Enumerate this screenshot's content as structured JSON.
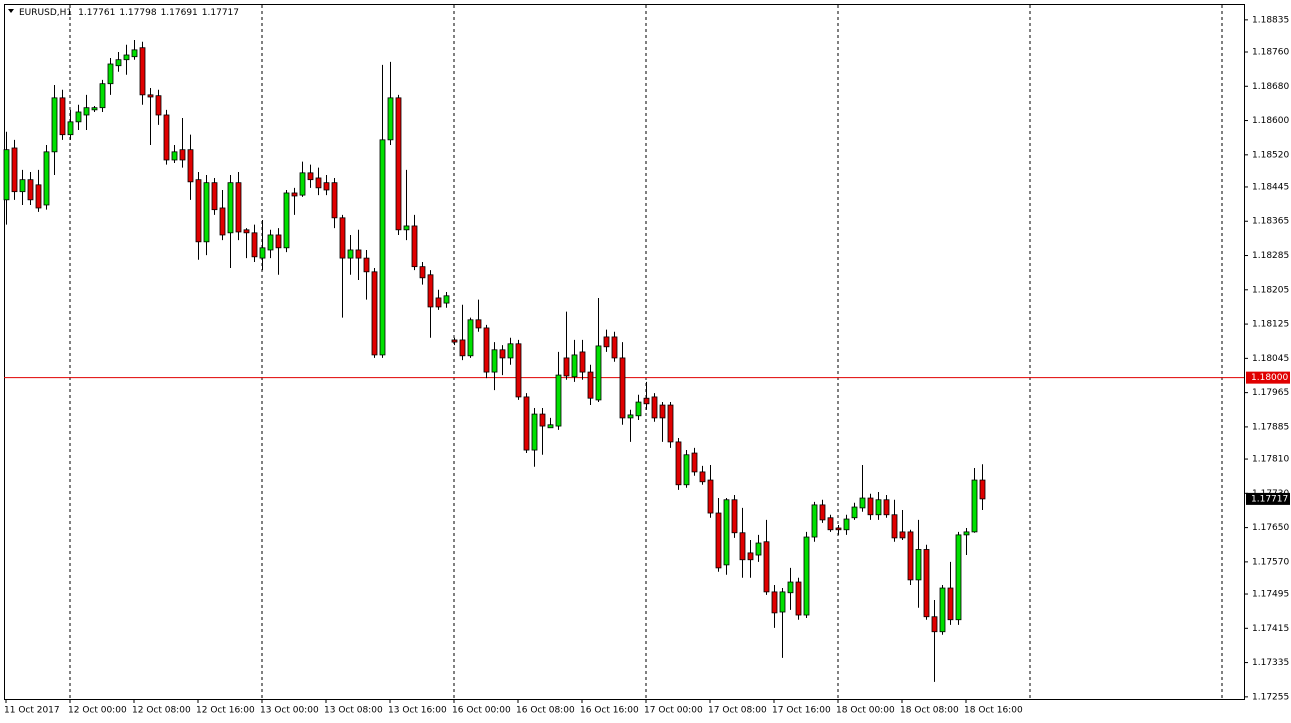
{
  "chart_data": {
    "type": "candlestick",
    "symbol": "EURUSD,H1",
    "categories": [
      "11 Oct 2017",
      null,
      null,
      null,
      null,
      null,
      null,
      null,
      "12 Oct 00:00",
      null,
      null,
      null,
      null,
      null,
      null,
      null,
      "12 Oct 08:00",
      null,
      null,
      null,
      null,
      null,
      null,
      null,
      "12 Oct 16:00",
      null,
      null,
      null,
      null,
      null,
      null,
      null,
      "13 Oct 00:00",
      null,
      null,
      null,
      null,
      null,
      null,
      null,
      "13 Oct 08:00",
      null,
      null,
      null,
      null,
      null,
      null,
      null,
      "13 Oct 16:00",
      null,
      null,
      null,
      null,
      null,
      null,
      null,
      "16 Oct 00:00",
      null,
      null,
      null,
      null,
      null,
      null,
      null,
      "16 Oct 08:00",
      null,
      null,
      null,
      null,
      null,
      null,
      null,
      "16 Oct 16:00",
      null,
      null,
      null,
      null,
      null,
      null,
      null,
      "17 Oct 00:00",
      null,
      null,
      null,
      null,
      null,
      null,
      null,
      "17 Oct 08:00",
      null,
      null,
      null,
      null,
      null,
      null,
      null,
      "17 Oct 16:00",
      null,
      null,
      null,
      null,
      null,
      null,
      null,
      "18 Oct 00:00",
      null,
      null,
      null,
      null,
      null,
      null,
      null,
      "18 Oct 08:00",
      null,
      null,
      null,
      null,
      null,
      null,
      null,
      "18 Oct 16:00",
      null,
      null
    ],
    "open": [
      1.18415,
      1.18536,
      1.18434,
      1.18462,
      1.1845,
      1.18403,
      1.18527,
      1.18653,
      1.18567,
      1.18597,
      1.18613,
      1.18625,
      1.1863,
      1.18686,
      1.18728,
      1.18742,
      1.18749,
      1.1877,
      1.1866,
      1.18658,
      1.18613,
      1.18508,
      1.18532,
      1.18532,
      1.18462,
      1.18317,
      1.18455,
      1.18396,
      1.18338,
      1.18455,
      1.18345,
      1.18338,
      1.18279,
      1.18298,
      1.18333,
      1.18303,
      1.18431,
      1.18426,
      1.18478,
      1.18466,
      1.18455,
      1.18455,
      1.18373,
      1.18279,
      1.18298,
      1.18279,
      1.18247,
      1.18053,
      1.18555,
      1.18653,
      1.18345,
      1.18354,
      1.18259,
      1.1824,
      1.18186,
      1.18174,
      1.18088,
      1.18088,
      1.18051,
      1.18135,
      1.18116,
      1.18013,
      1.18065,
      1.18046,
      1.18079,
      1.17955,
      1.17831,
      1.17915,
      1.17883,
      1.17887,
      1.18046,
      1.18002,
      1.1806,
      1.18013,
      1.17948,
      1.18095,
      1.18095,
      1.18046,
      1.17906,
      1.17911,
      1.17952,
      1.17955,
      1.17936,
      1.17936,
      1.1785,
      1.1775,
      1.17824,
      1.1778,
      1.17761,
      1.17684,
      1.17563,
      1.17715,
      1.17638,
      1.17591,
      1.17586,
      1.17617,
      1.175,
      1.17453,
      1.17498,
      1.17523,
      1.17446,
      1.17628,
      1.17703,
      1.17673,
      1.17649,
      1.17645,
      1.17673,
      1.17696,
      1.17719,
      1.1768,
      1.17715,
      1.1768,
      1.1764,
      1.1764,
      1.17528,
      1.17599,
      1.17442,
      1.17407,
      1.17509,
      1.17435,
      1.17633,
      1.1764,
      1.17761
    ],
    "high": [
      1.18574,
      1.18555,
      1.18485,
      1.1848,
      1.18485,
      1.18543,
      1.18683,
      1.18672,
      1.18625,
      1.18637,
      1.1866,
      1.18634,
      1.18695,
      1.18746,
      1.1876,
      1.18777,
      1.18788,
      1.18784,
      1.18676,
      1.18672,
      1.18625,
      1.18543,
      1.18606,
      1.18567,
      1.1848,
      1.18473,
      1.18466,
      1.18438,
      1.18473,
      1.1848,
      1.18349,
      1.18357,
      1.18368,
      1.18345,
      1.18349,
      1.18438,
      1.18443,
      1.18504,
      1.18497,
      1.1849,
      1.18473,
      1.18466,
      1.1838,
      1.18333,
      1.18345,
      1.18298,
      1.18256,
      1.1873,
      1.18737,
      1.1866,
      1.18485,
      1.1838,
      1.1827,
      1.18251,
      1.18205,
      1.182,
      1.18093,
      1.1817,
      1.1814,
      1.18182,
      1.18123,
      1.18083,
      1.18076,
      1.18093,
      1.18088,
      1.17964,
      1.17929,
      1.17929,
      1.17906,
      1.1806,
      1.18154,
      1.18088,
      1.18088,
      1.1803,
      1.18186,
      1.18112,
      1.18107,
      1.18083,
      1.17925,
      1.1796,
      1.1799,
      1.17964,
      1.17943,
      1.17943,
      1.17859,
      1.17831,
      1.17836,
      1.17794,
      1.17796,
      1.17719,
      1.17719,
      1.17726,
      1.17696,
      1.17621,
      1.17633,
      1.17668,
      1.17516,
      1.17509,
      1.17556,
      1.17533,
      1.1764,
      1.1771,
      1.17715,
      1.1768,
      1.17656,
      1.1768,
      1.17708,
      1.17796,
      1.17729,
      1.17733,
      1.17726,
      1.17715,
      1.17691,
      1.17645,
      1.17668,
      1.1761,
      1.17481,
      1.17516,
      1.1757,
      1.1764,
      1.17649,
      1.17789,
      1.17798
    ],
    "low": [
      1.18357,
      1.18415,
      1.18403,
      1.18403,
      1.18387,
      1.18392,
      1.18473,
      1.18555,
      1.18555,
      1.18578,
      1.18578,
      1.1862,
      1.1862,
      1.1866,
      1.18714,
      1.18707,
      1.18742,
      1.18637,
      1.18543,
      1.1859,
      1.18497,
      1.18501,
      1.1849,
      1.18415,
      1.18275,
      1.18286,
      1.1838,
      1.18321,
      1.18256,
      1.18321,
      1.18279,
      1.1827,
      1.18251,
      1.18279,
      1.1824,
      1.18293,
      1.1838,
      1.18422,
      1.18443,
      1.18426,
      1.18426,
      1.18349,
      1.1814,
      1.1824,
      1.18228,
      1.18182,
      1.18046,
      1.18046,
      1.18543,
      1.18333,
      1.18321,
      1.18251,
      1.18217,
      1.18093,
      1.18158,
      1.18163,
      1.18076,
      1.18041,
      1.18046,
      1.18107,
      1.17999,
      1.17971,
      1.18006,
      1.1803,
      1.17948,
      1.17824,
      1.17792,
      1.1782,
      1.17883,
      1.17878,
      1.17995,
      1.1799,
      1.17995,
      1.17936,
      1.17943,
      1.1806,
      1.18037,
      1.1789,
      1.1785,
      1.17901,
      1.17925,
      1.17897,
      1.1785,
      1.17836,
      1.17738,
      1.17743,
      1.17771,
      1.1775,
      1.17673,
      1.17547,
      1.1754,
      1.17626,
      1.17533,
      1.17533,
      1.1757,
      1.17493,
      1.17416,
      1.17346,
      1.17458,
      1.17435,
      1.17439,
      1.17617,
      1.17661,
      1.1764,
      1.17633,
      1.17633,
      1.17668,
      1.17687,
      1.17668,
      1.17668,
      1.17673,
      1.17617,
      1.17621,
      1.17516,
      1.17463,
      1.17435,
      1.1729,
      1.174,
      1.17423,
      1.17423,
      1.17586,
      1.17638,
      1.17691
    ],
    "close": [
      1.18532,
      1.18434,
      1.18462,
      1.18415,
      1.18396,
      1.18527,
      1.18653,
      1.18567,
      1.18597,
      1.1862,
      1.1863,
      1.1863,
      1.18686,
      1.18732,
      1.18742,
      1.18753,
      1.18765,
      1.1866,
      1.18655,
      1.18613,
      1.18508,
      1.18527,
      1.18508,
      1.18457,
      1.18317,
      1.18455,
      1.18392,
      1.18333,
      1.18455,
      1.1834,
      1.18338,
      1.18282,
      1.18303,
      1.18333,
      1.18303,
      1.18431,
      1.18424,
      1.18478,
      1.18462,
      1.18443,
      1.18438,
      1.18373,
      1.18279,
      1.18298,
      1.18279,
      1.18247,
      1.18053,
      1.18555,
      1.18653,
      1.18345,
      1.18354,
      1.18259,
      1.18233,
      1.18165,
      1.18165,
      1.18191,
      1.18083,
      1.18051,
      1.18135,
      1.18116,
      1.18013,
      1.18065,
      1.18046,
      1.18079,
      1.17955,
      1.17831,
      1.17915,
      1.17887,
      1.1789,
      1.18006,
      1.18004,
      1.18053,
      1.18013,
      1.17952,
      1.18074,
      1.18072,
      1.18046,
      1.17906,
      1.17913,
      1.17943,
      1.17939,
      1.17906,
      1.17906,
      1.1785,
      1.1775,
      1.1782,
      1.1778,
      1.17757,
      1.17684,
      1.17556,
      1.17715,
      1.17638,
      1.17575,
      1.17575,
      1.17614,
      1.175,
      1.17451,
      1.175,
      1.17523,
      1.17446,
      1.17628,
      1.17703,
      1.17668,
      1.17645,
      1.17645,
      1.1767,
      1.17698,
      1.17719,
      1.1768,
      1.17715,
      1.1768,
      1.17626,
      1.17626,
      1.17528,
      1.17599,
      1.17442,
      1.17407,
      1.17509,
      1.17435,
      1.17633,
      1.1764,
      1.17761,
      1.17717
    ],
    "bull_color": "#00e000",
    "bear_color": "#e00000",
    "ylim": [
      1.1725,
      1.18872
    ],
    "yticks": [
      1.18835,
      {
        "value": 1.1876,
        "label": "1.18760"
      },
      {
        "value": 1.1868,
        "label": "1.18680"
      },
      {
        "value": 1.186,
        "label": "1.18600"
      },
      {
        "value": 1.1852,
        "label": "1.18520"
      },
      1.18445,
      1.18365,
      1.18285,
      1.18205,
      1.18125,
      1.18045,
      1.17965,
      1.17885,
      {
        "value": 1.1781,
        "label": "1.17810"
      },
      {
        "value": 1.1773,
        "label": "1.17730"
      },
      {
        "value": 1.1765,
        "label": "1.17650"
      },
      {
        "value": 1.1757,
        "label": "1.17570"
      },
      1.17495,
      1.17415,
      1.17335,
      1.17255
    ],
    "hlines": [
      {
        "value": 1.18,
        "label": "1.18000",
        "color": "#e00000"
      }
    ],
    "period_separators": true,
    "grid": false
  }
}
